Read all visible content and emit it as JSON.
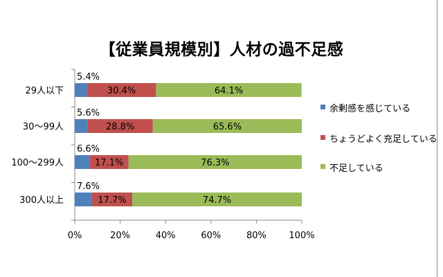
{
  "chart_data": {
    "type": "bar",
    "orientation": "horizontal",
    "stacked": "percent",
    "title": "【従業員規模別】人材の過不足感",
    "categories": [
      "29人以下",
      "30〜99人",
      "100〜299人",
      "300人以上"
    ],
    "series": [
      {
        "name": "余剰感を感じている",
        "color": "#4f81bd",
        "values": [
          5.4,
          5.6,
          6.6,
          7.6
        ],
        "labels": [
          "5.4%",
          "5.6%",
          "6.6%",
          "7.6%"
        ]
      },
      {
        "name": "ちょうどよく充足している",
        "color": "#c0504d",
        "values": [
          30.4,
          28.8,
          17.1,
          17.7
        ],
        "labels": [
          "30.4%",
          "28.8%",
          "17.1%",
          "17.7%"
        ]
      },
      {
        "name": "不足している",
        "color": "#9bbb59",
        "values": [
          64.1,
          65.6,
          76.3,
          74.7
        ],
        "labels": [
          "64.1%",
          "65.6%",
          "76.3%",
          "74.7%"
        ]
      }
    ],
    "x_ticks": [
      "0%",
      "20%",
      "40%",
      "60%",
      "80%",
      "100%"
    ],
    "xlim": [
      0,
      100
    ],
    "grid": false,
    "legend_position": "right"
  }
}
